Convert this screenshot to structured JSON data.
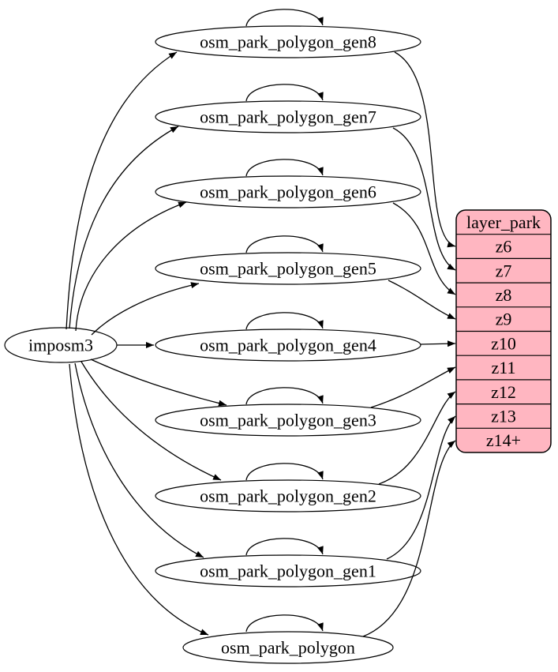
{
  "diagram": {
    "type": "dependency-graph",
    "background": "#ffffff",
    "edge_color": "#000000",
    "node_fill": "#ffffff",
    "source_node": {
      "label": "imposm3"
    },
    "tables": [
      {
        "id": "osm_park_polygon_gen8",
        "label": "osm_park_polygon_gen8",
        "target_zoom": "z6"
      },
      {
        "id": "osm_park_polygon_gen7",
        "label": "osm_park_polygon_gen7",
        "target_zoom": "z7"
      },
      {
        "id": "osm_park_polygon_gen6",
        "label": "osm_park_polygon_gen6",
        "target_zoom": "z8"
      },
      {
        "id": "osm_park_polygon_gen5",
        "label": "osm_park_polygon_gen5",
        "target_zoom": "z9"
      },
      {
        "id": "osm_park_polygon_gen4",
        "label": "osm_park_polygon_gen4",
        "target_zoom": "z10"
      },
      {
        "id": "osm_park_polygon_gen3",
        "label": "osm_park_polygon_gen3",
        "target_zoom": "z11"
      },
      {
        "id": "osm_park_polygon_gen2",
        "label": "osm_park_polygon_gen2",
        "target_zoom": "z12"
      },
      {
        "id": "osm_park_polygon_gen1",
        "label": "osm_park_polygon_gen1",
        "target_zoom": "z13"
      },
      {
        "id": "osm_park_polygon",
        "label": "osm_park_polygon",
        "target_zoom": "z14+"
      }
    ],
    "record": {
      "title": "layer_park",
      "rows": [
        "z6",
        "z7",
        "z8",
        "z9",
        "z10",
        "z11",
        "z12",
        "z13",
        "z14+"
      ],
      "fill": "#ffb6c1",
      "border": "#000000"
    }
  }
}
